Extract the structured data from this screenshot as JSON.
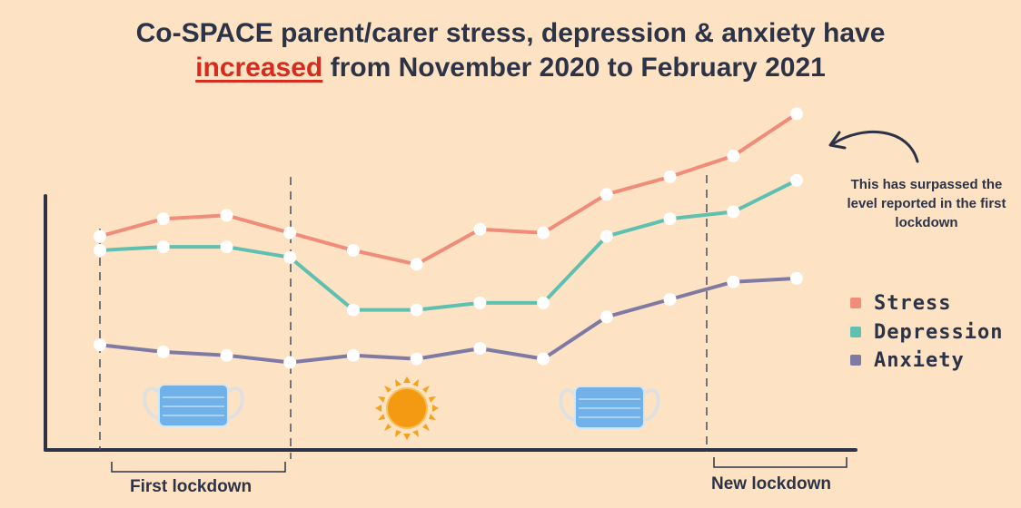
{
  "title": {
    "line1": "Co-SPACE parent/carer stress, depression & anxiety have",
    "highlight": "increased",
    "line2_rest": " from November 2020 to February 2021"
  },
  "annotation": "This has surpassed the level reported in the first lockdown",
  "lockdowns": {
    "first": "First lockdown",
    "new": "New lockdown"
  },
  "colors": {
    "stress": "#ef8c7a",
    "depression": "#5fbfb0",
    "anxiety": "#7f7aa3",
    "axis": "#2d3347",
    "highlight": "#d62b1f",
    "background": "#fde3c4"
  },
  "icons": [
    "face-mask-icon",
    "sun-icon",
    "face-mask-icon",
    "curved-arrow-icon"
  ],
  "chart_data": {
    "type": "line",
    "title": "Co-SPACE parent/carer stress, depression & anxiety have increased from November 2020 to February 2021",
    "xlabel": "",
    "ylabel": "",
    "x": [
      1,
      2,
      3,
      4,
      5,
      6,
      7,
      8,
      9,
      10,
      11,
      12
    ],
    "ylim": [
      0,
      100
    ],
    "grid": false,
    "legend": "right",
    "series": [
      {
        "name": "Stress",
        "color": "#ef8c7a",
        "values": [
          61,
          66,
          67,
          62,
          57,
          53,
          63,
          62,
          73,
          78,
          84,
          96
        ]
      },
      {
        "name": "Depression",
        "color": "#5fbfb0",
        "values": [
          57,
          58,
          58,
          55,
          40,
          40,
          42,
          42,
          61,
          66,
          68,
          77
        ]
      },
      {
        "name": "Anxiety",
        "color": "#7f7aa3",
        "values": [
          30,
          28,
          27,
          25,
          27,
          26,
          29,
          26,
          38,
          43,
          48,
          49
        ]
      }
    ],
    "annotations": [
      {
        "text": "This has surpassed the level reported in the first lockdown",
        "points_to": "Stress final value"
      },
      {
        "text": "First lockdown",
        "span_x": [
          1,
          4
        ]
      },
      {
        "text": "New lockdown",
        "span_x": [
          11,
          12
        ]
      }
    ]
  }
}
